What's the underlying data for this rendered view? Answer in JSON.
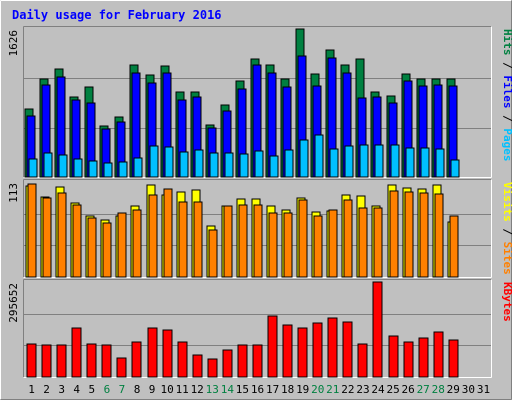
{
  "chart_data": {
    "type": "bar",
    "title": "Daily usage for February 2016",
    "days": [
      "1",
      "2",
      "3",
      "4",
      "5",
      "6",
      "7",
      "8",
      "9",
      "10",
      "11",
      "12",
      "13",
      "14",
      "15",
      "16",
      "17",
      "18",
      "19",
      "20",
      "21",
      "22",
      "23",
      "24",
      "25",
      "26",
      "27",
      "28",
      "29",
      "30",
      "31"
    ],
    "weekend_days": [
      "6",
      "7",
      "13",
      "14",
      "20",
      "21",
      "27",
      "28"
    ],
    "colors": {
      "hits": "#008040",
      "files": "#0000ff",
      "pages": "#00c0ff",
      "visits": "#ffff00",
      "sites": "#ff8000",
      "kbytes": "#ff0000",
      "weekday_label": "#000000",
      "weekend_label": "#008040"
    },
    "panels": [
      {
        "id": "hits-files-pages",
        "ymax_label": "1626",
        "ymax": 1626,
        "legend": [
          {
            "text": "Pages",
            "color": "#00c0ff"
          },
          {
            "text": " / ",
            "color": "#000000"
          },
          {
            "text": "Files",
            "color": "#0000ff"
          },
          {
            "text": " / ",
            "color": "#000000"
          },
          {
            "text": "Hits",
            "color": "#008040"
          }
        ],
        "series": [
          {
            "name": "Hits",
            "color": "#008040",
            "values": [
              742,
              1075,
              1186,
              882,
              992,
              562,
              661,
              1226,
              1126,
              1219,
              936,
              936,
              569,
              793,
              1053,
              1301,
              1226,
              1075,
              1623,
              1137,
              1393,
              1226,
              1298,
              930,
              888,
              1137,
              1079,
              1075,
              1075,
              null,
              null
            ]
          },
          {
            "name": "Files",
            "color": "#0000ff",
            "values": [
              674,
              1012,
              1098,
              845,
              808,
              529,
              606,
              1148,
              1034,
              1148,
              847,
              877,
              538,
              721,
              972,
              1235,
              1148,
              991,
              1324,
              1000,
              1303,
              1148,
              863,
              876,
              813,
              1057,
              1000,
              1012,
              1000,
              null,
              null
            ]
          },
          {
            "name": "Pages",
            "color": "#00c0ff",
            "values": [
              195,
              269,
              247,
              198,
              173,
              159,
              167,
              213,
              341,
              330,
              271,
              298,
              269,
              269,
              253,
              281,
              233,
              294,
              405,
              462,
              309,
              336,
              354,
              355,
              354,
              318,
              324,
              309,
              183,
              null,
              null
            ]
          }
        ]
      },
      {
        "id": "visits-sites",
        "ymax_label": "113",
        "ymax": 113,
        "legend": [
          {
            "text": "Sites",
            "color": "#ff8000"
          },
          {
            "text": " / ",
            "color": "#000000"
          },
          {
            "text": "Visits",
            "color": "#ffff00"
          }
        ],
        "series": [
          {
            "name": "Visits",
            "color": "#ffff00",
            "values": [
              108,
              95,
              107,
              88,
              72,
              68,
              72,
              85,
              110,
              97,
              101,
              103,
              61,
              85,
              93,
              93,
              85,
              80,
              94,
              77,
              79,
              97,
              96,
              84,
              109,
              106,
              105,
              110,
              65,
              null,
              null
            ]
          },
          {
            "name": "Sites",
            "color": "#ff8000",
            "values": [
              111,
              94,
              100,
              86,
              70,
              64,
              76,
              80,
              98,
              105,
              89,
              89,
              56,
              84,
              86,
              86,
              76,
              76,
              92,
              73,
              80,
              92,
              82,
              82,
              102,
              101,
              100,
              99,
              72,
              null,
              null
            ]
          }
        ]
      },
      {
        "id": "kbytes",
        "ymax_label": "295652",
        "ymax": 295652,
        "legend": [
          {
            "text": "KBytes",
            "color": "#ff0000"
          }
        ],
        "series": [
          {
            "name": "KBytes",
            "color": "#ff0000",
            "values": [
              102000,
              99000,
              99000,
              153000,
              104000,
              99000,
              59000,
              110000,
              153000,
              146000,
              109000,
              68000,
              55000,
              84000,
              99000,
              99000,
              189000,
              162000,
              153000,
              168000,
              185000,
              171000,
              104000,
              295652,
              127000,
              109000,
              120000,
              139000,
              114000,
              null,
              null
            ]
          }
        ]
      }
    ]
  }
}
